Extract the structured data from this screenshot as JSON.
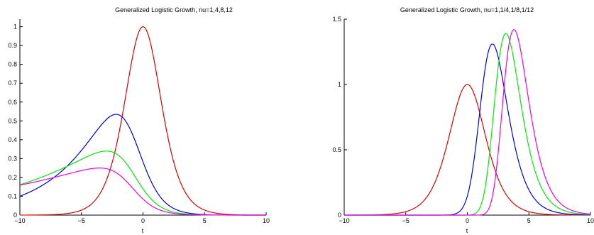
{
  "chart_data": [
    {
      "type": "line",
      "title": "Generalized Logistic Growth, nu=1,4,8,12",
      "xlabel": "t",
      "ylabel": "",
      "xlim": [
        -10,
        10
      ],
      "ylim": [
        0,
        1.04
      ],
      "xticks": [
        -10,
        -5,
        0,
        5,
        10
      ],
      "xticklabels": [
        "−10",
        "−5",
        "0",
        "5",
        "10"
      ],
      "yticks": [
        0,
        0.1,
        0.2,
        0.3,
        0.4,
        0.5,
        0.6,
        0.7,
        0.8,
        0.9,
        1
      ],
      "yticklabels": [
        "0",
        "0.1",
        "0.2",
        "0.3",
        "0.4",
        "0.5",
        "0.6",
        "0.7",
        "0.8",
        "0.9",
        "1"
      ],
      "grid": false,
      "series": [
        {
          "nu": 1,
          "color": "#dd0000",
          "peak_t": 0,
          "peak_value": 1.0
        },
        {
          "nu": 4,
          "color": "#0000dd",
          "peak_t": -0.8,
          "peak_value": 0.535
        },
        {
          "nu": 8,
          "color": "#00ee00",
          "peak_t": -0.9,
          "peak_value": 0.34
        },
        {
          "nu": 12,
          "color": "#ee00ee",
          "peak_t": -1.05,
          "peak_value": 0.25
        }
      ]
    },
    {
      "type": "line",
      "title": "Generalized Logistic Growth, nu=1,1/4,1/8,1/12",
      "xlabel": "t",
      "ylabel": "",
      "xlim": [
        -10,
        10
      ],
      "ylim": [
        0,
        1.5
      ],
      "xticks": [
        -10,
        -5,
        0,
        5,
        10
      ],
      "xticklabels": [
        "−10",
        "−5",
        "0",
        "5",
        "10"
      ],
      "yticks": [
        0,
        0.5,
        1,
        1.5
      ],
      "yticklabels": [
        "0",
        "0.5",
        "1",
        "1.5"
      ],
      "grid": false,
      "series": [
        {
          "nu": 1,
          "color": "#dd0000",
          "peak_t": 0,
          "peak_value": 1.0
        },
        {
          "nu": 0.25,
          "color": "#0000dd",
          "peak_t": 0.65,
          "peak_value": 1.31
        },
        {
          "nu": 0.125,
          "color": "#00ee00",
          "peak_t": 1.05,
          "peak_value": 1.39
        },
        {
          "nu": 0.0833,
          "color": "#ee00ee",
          "peak_t": 1.3,
          "peak_value": 1.42
        }
      ]
    }
  ]
}
